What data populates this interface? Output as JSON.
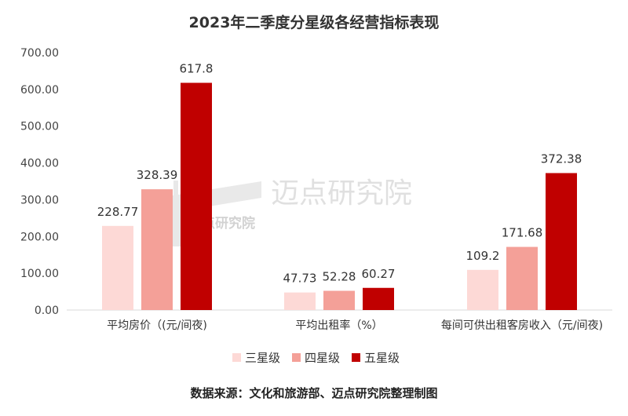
{
  "chart_data": {
    "type": "bar",
    "title": "2023年二季度分星级各经营指标表现",
    "categories": [
      "平均房价（(元/间夜)",
      "平均出租率（%）",
      "每间可供出租客房收入（元/间夜)"
    ],
    "series": [
      {
        "name": "三星级",
        "values": [
          228.77,
          47.73,
          109.2
        ],
        "labels": [
          "228.77",
          "47.73",
          "109.2"
        ],
        "color": "#fdd9d6"
      },
      {
        "name": "四星级",
        "values": [
          328.39,
          52.28,
          171.68
        ],
        "labels": [
          "328.39",
          "52.28",
          "171.68"
        ],
        "color": "#f4a098"
      },
      {
        "name": "五星级",
        "values": [
          617.8,
          60.27,
          372.38
        ],
        "labels": [
          "617.8",
          "60.27",
          "372.38"
        ],
        "color": "#c00000"
      }
    ],
    "yticks": [
      "0.00",
      "100.00",
      "200.00",
      "300.00",
      "400.00",
      "500.00",
      "600.00",
      "700.00"
    ],
    "ylim": [
      0,
      700
    ],
    "grid": false,
    "legend_position": "bottom"
  },
  "watermark": {
    "text": "迈点研究院",
    "logo_text": "迈点研究院"
  },
  "source_note": "数据来源：文化和旅游部、迈点研究院整理制图"
}
